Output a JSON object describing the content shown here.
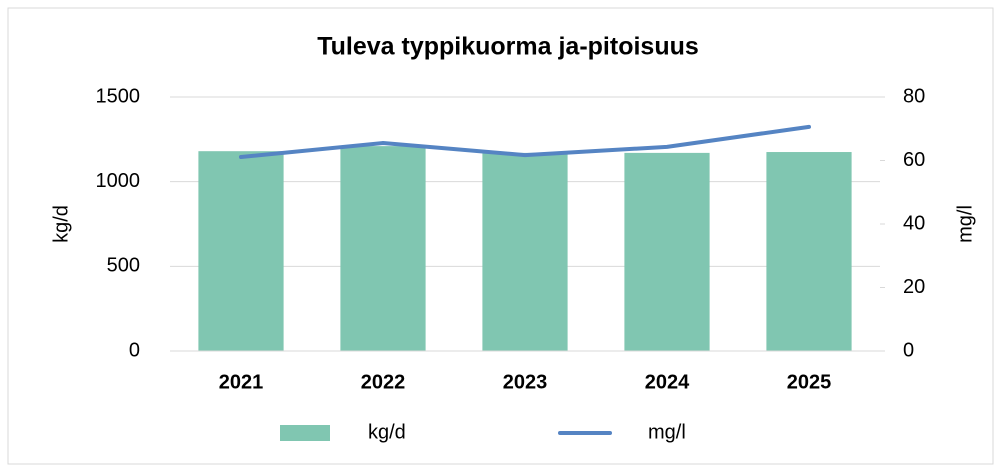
{
  "chart_data": {
    "type": "bar-line",
    "title": "Tuleva typpikuorma ja-pitoisuus",
    "categories": [
      "2021",
      "2022",
      "2023",
      "2024",
      "2025"
    ],
    "series": [
      {
        "name": "kg/d",
        "type": "bar",
        "axis": "y",
        "color": "#80c6b1",
        "values": [
          1180,
          1210,
          1170,
          1170,
          1175
        ]
      },
      {
        "name": "mg/l",
        "type": "line",
        "axis": "y2",
        "color": "#5584c3",
        "values": [
          61.1,
          65.5,
          61.7,
          64.3,
          70.6
        ]
      }
    ],
    "ylabel": "kg/d",
    "y2label": "mg/l",
    "ylim": [
      0,
      1500
    ],
    "yticks": [
      0,
      500,
      1000,
      1500
    ],
    "y2lim": [
      0,
      80
    ],
    "y2ticks": [
      0,
      20,
      40,
      60,
      80
    ],
    "grid": true,
    "legend": "bottom"
  }
}
